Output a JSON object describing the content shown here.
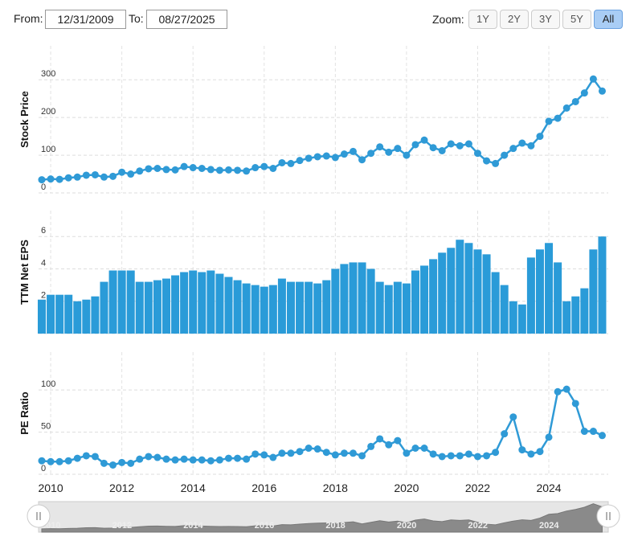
{
  "controls": {
    "from_label": "From:",
    "from_value": "12/31/2009",
    "to_label": "To:",
    "to_value": "08/27/2025",
    "zoom_label": "Zoom:",
    "zoom_options": [
      "1Y",
      "2Y",
      "3Y",
      "5Y",
      "All"
    ],
    "zoom_active": "All"
  },
  "chart_data": [
    {
      "type": "line",
      "y_label": "Stock Price",
      "color": "#2f9ad6",
      "grid": true,
      "x": [
        2009.75,
        2010,
        2010.25,
        2010.5,
        2010.75,
        2011,
        2011.25,
        2011.5,
        2011.75,
        2012,
        2012.25,
        2012.5,
        2012.75,
        2013,
        2013.25,
        2013.5,
        2013.75,
        2014,
        2014.25,
        2014.5,
        2014.75,
        2015,
        2015.25,
        2015.5,
        2015.75,
        2016,
        2016.25,
        2016.5,
        2016.75,
        2017,
        2017.25,
        2017.5,
        2017.75,
        2018,
        2018.25,
        2018.5,
        2018.75,
        2019,
        2019.25,
        2019.5,
        2019.75,
        2020,
        2020.25,
        2020.5,
        2020.75,
        2021,
        2021.25,
        2021.5,
        2021.75,
        2022,
        2022.25,
        2022.5,
        2022.75,
        2023,
        2023.25,
        2023.5,
        2023.75,
        2024,
        2024.25,
        2024.5,
        2024.75,
        2025,
        2025.25,
        2025.5
      ],
      "values": [
        35,
        37,
        36,
        40,
        42,
        47,
        48,
        42,
        44,
        55,
        50,
        58,
        64,
        65,
        62,
        61,
        70,
        67,
        65,
        62,
        60,
        61,
        60,
        58,
        67,
        70,
        65,
        80,
        78,
        86,
        92,
        96,
        98,
        94,
        103,
        110,
        88,
        105,
        122,
        108,
        118,
        100,
        128,
        140,
        120,
        112,
        130,
        125,
        130,
        105,
        85,
        78,
        100,
        118,
        132,
        125,
        150,
        190,
        198,
        225,
        242,
        265,
        302,
        270
      ],
      "xlim": [
        2009.66,
        2025.67
      ],
      "ylim": [
        0,
        390
      ],
      "yticks": [
        0,
        100,
        200,
        300
      ]
    },
    {
      "type": "bar",
      "y_label": "TTM Net EPS",
      "color": "#2a9bd8",
      "grid": true,
      "x": [
        2009.75,
        2010,
        2010.25,
        2010.5,
        2010.75,
        2011,
        2011.25,
        2011.5,
        2011.75,
        2012,
        2012.25,
        2012.5,
        2012.75,
        2013,
        2013.25,
        2013.5,
        2013.75,
        2014,
        2014.25,
        2014.5,
        2014.75,
        2015,
        2015.25,
        2015.5,
        2015.75,
        2016,
        2016.25,
        2016.5,
        2016.75,
        2017,
        2017.25,
        2017.5,
        2017.75,
        2018,
        2018.25,
        2018.5,
        2018.75,
        2019,
        2019.25,
        2019.5,
        2019.75,
        2020,
        2020.25,
        2020.5,
        2020.75,
        2021,
        2021.25,
        2021.5,
        2021.75,
        2022,
        2022.25,
        2022.5,
        2022.75,
        2023,
        2023.25,
        2023.5,
        2023.75,
        2024,
        2024.25,
        2024.5,
        2024.75,
        2025,
        2025.25,
        2025.5
      ],
      "values": [
        2.1,
        2.4,
        2.4,
        2.4,
        2.0,
        2.1,
        2.3,
        3.2,
        3.9,
        3.9,
        3.9,
        3.2,
        3.2,
        3.3,
        3.4,
        3.6,
        3.8,
        3.9,
        3.8,
        3.9,
        3.7,
        3.5,
        3.3,
        3.1,
        3.0,
        2.9,
        3.0,
        3.4,
        3.2,
        3.2,
        3.2,
        3.1,
        3.3,
        4.0,
        4.3,
        4.4,
        4.4,
        4.0,
        3.2,
        3.0,
        3.2,
        3.1,
        3.9,
        4.2,
        4.6,
        5.0,
        5.3,
        5.8,
        5.6,
        5.2,
        4.9,
        3.8,
        3.0,
        2.0,
        1.8,
        4.7,
        5.2,
        5.6,
        4.4,
        2.0,
        2.3,
        2.8,
        5.2,
        6.0
      ],
      "xlim": [
        2009.66,
        2025.67
      ],
      "ylim": [
        0,
        7.6
      ],
      "yticks": [
        0,
        2,
        4,
        6
      ]
    },
    {
      "type": "line",
      "y_label": "PE Ratio",
      "color": "#2f9ad6",
      "grid": true,
      "x": [
        2009.75,
        2010,
        2010.25,
        2010.5,
        2010.75,
        2011,
        2011.25,
        2011.5,
        2011.75,
        2012,
        2012.25,
        2012.5,
        2012.75,
        2013,
        2013.25,
        2013.5,
        2013.75,
        2014,
        2014.25,
        2014.5,
        2014.75,
        2015,
        2015.25,
        2015.5,
        2015.75,
        2016,
        2016.25,
        2016.5,
        2016.75,
        2017,
        2017.25,
        2017.5,
        2017.75,
        2018,
        2018.25,
        2018.5,
        2018.75,
        2019,
        2019.25,
        2019.5,
        2019.75,
        2020,
        2020.25,
        2020.5,
        2020.75,
        2021,
        2021.25,
        2021.5,
        2021.75,
        2022,
        2022.25,
        2022.5,
        2022.75,
        2023,
        2023.25,
        2023.5,
        2023.75,
        2024,
        2024.25,
        2024.5,
        2024.75,
        2025,
        2025.25,
        2025.5
      ],
      "values": [
        16,
        15,
        15,
        16,
        19,
        22,
        21,
        13,
        11,
        14,
        13,
        18,
        21,
        20,
        18,
        17,
        18,
        17,
        17,
        16,
        17,
        19,
        19,
        18,
        24,
        23,
        20,
        25,
        25,
        27,
        31,
        30,
        26,
        23,
        25,
        25,
        22,
        33,
        42,
        35,
        40,
        25,
        31,
        31,
        24,
        21,
        22,
        22,
        24,
        21,
        22,
        26,
        48,
        68,
        29,
        24,
        27,
        44,
        98,
        101,
        84,
        51,
        51,
        46
      ],
      "xlim": [
        2009.66,
        2025.67
      ],
      "ylim": [
        0,
        145
      ],
      "yticks": [
        0,
        50,
        100
      ],
      "xticks": [
        2010,
        2012,
        2014,
        2016,
        2018,
        2020,
        2022,
        2024
      ]
    }
  ]
}
